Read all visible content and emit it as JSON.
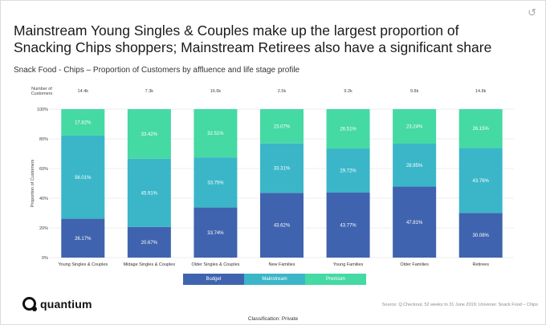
{
  "header": {
    "title": "Mainstream Young Singles & Couples make up the largest proportion of Snacking Chips shoppers; Mainstream Retirees also have a significant share",
    "subtitle": "Snack Food - Chips – Proportion of Customers by affluence and life stage profile",
    "refresh_icon": "refresh-icon"
  },
  "chart_data": {
    "type": "bar",
    "stacked": true,
    "categories": [
      "Young Singles & Couples",
      "Midage Singles & Couples",
      "Older Singles & Couples",
      "New Families",
      "Young Families",
      "Older Families",
      "Retirees"
    ],
    "customer_count_label": "Number of Customers",
    "customer_counts": [
      "14.4k",
      "7.3k",
      "16.6k",
      "2.5k",
      "9.2k",
      "9.8k",
      "14.8k"
    ],
    "series": [
      {
        "name": "Budget",
        "color": "#3f63ae",
        "values": [
          26.17,
          20.67,
          33.74,
          43.62,
          43.77,
          47.81,
          30.08
        ],
        "labels": [
          "26.17%",
          "20.67%",
          "33.74%",
          "43.62%",
          "43.77%",
          "47.81%",
          "30.08%"
        ]
      },
      {
        "name": "Mainstream",
        "color": "#3ab6c8",
        "values": [
          56.01,
          45.91,
          33.75,
          33.31,
          29.72,
          28.95,
          43.76
        ],
        "labels": [
          "56.01%",
          "45.91%",
          "33.75%",
          "33.31%",
          "29.72%",
          "28.95%",
          "43.76%"
        ]
      },
      {
        "name": "Premium",
        "color": "#45d9a4",
        "values": [
          17.82,
          33.42,
          32.51,
          23.07,
          26.51,
          23.24,
          26.15
        ],
        "labels": [
          "17.82%",
          "33.42%",
          "32.51%",
          "23.07%",
          "26.51%",
          "23.24%",
          "26.15%"
        ]
      }
    ],
    "y_ticks": [
      "0%",
      "20%",
      "40%",
      "60%",
      "80%",
      "100%"
    ],
    "ylabel": "Proportion of Customers",
    "ylim": [
      0,
      100
    ],
    "legend_position": "bottom"
  },
  "footer": {
    "logo_text": "quantium",
    "source": "Source: Q.Checkout, 52 weeks to 31 June 2019; Universe: Snack Food – Chips",
    "classification": "Classification: Private"
  }
}
